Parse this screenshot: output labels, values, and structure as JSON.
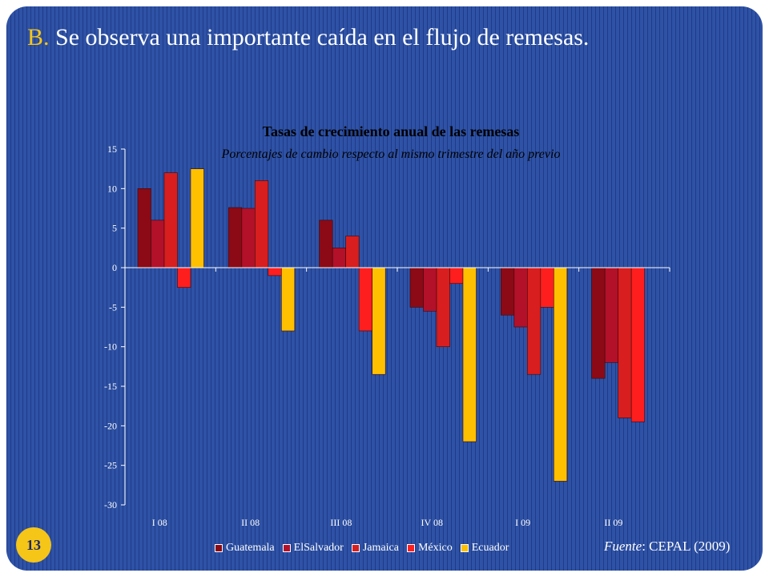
{
  "slide": {
    "title_letter": "B.",
    "title_text": "Se observa una importante caída en el flujo de remesas.",
    "page_number": "13",
    "source_label": "Fuente",
    "source_text": ": CEPAL (2009)"
  },
  "chart_data": {
    "type": "bar",
    "title": "Tasas de crecimiento anual de las remesas",
    "subtitle": "Porcentajes de cambio respecto al mismo trimestre del año previo",
    "categories": [
      "I 08",
      "II 08",
      "III 08",
      "IV 08",
      "I 09",
      "II 09"
    ],
    "ylim": [
      -30,
      15
    ],
    "yticks": [
      "15",
      "10",
      "5",
      "0",
      "-5",
      "-10",
      "-15",
      "-20",
      "-25",
      "-30"
    ],
    "grid": false,
    "legend_position": "bottom",
    "series": [
      {
        "name": "Guatemala",
        "color": "#8b0a16",
        "values": [
          10,
          7.6,
          6,
          -5,
          -6,
          -14
        ]
      },
      {
        "name": "ElSalvador",
        "color": "#b3102a",
        "values": [
          6,
          7.5,
          2.5,
          -5.5,
          -7.5,
          -12
        ]
      },
      {
        "name": "Jamaica",
        "color": "#d81e1e",
        "values": [
          12,
          11,
          4,
          -10,
          -13.5,
          -19
        ]
      },
      {
        "name": "México",
        "color": "#ff1e1e",
        "values": [
          -2.5,
          -1,
          -8,
          -2,
          -5,
          -19.5
        ]
      },
      {
        "name": "Ecuador",
        "color": "#ffc000",
        "values": [
          12.5,
          -8,
          -13.5,
          -22,
          -27,
          null
        ]
      }
    ]
  }
}
